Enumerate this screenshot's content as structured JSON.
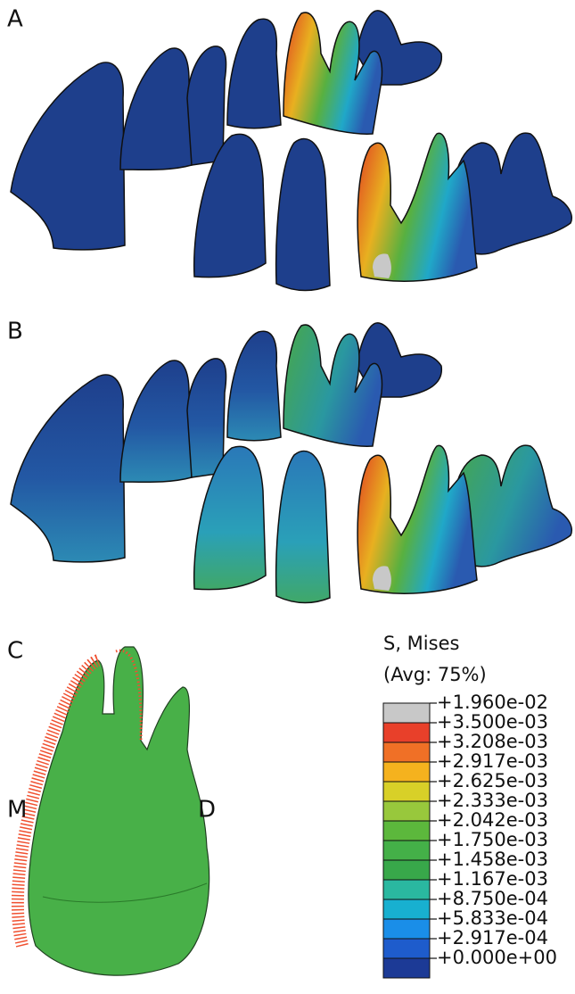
{
  "panels": [
    {
      "label": "A"
    },
    {
      "label": "B"
    },
    {
      "label": "C"
    }
  ],
  "annotations": [
    "M",
    "D"
  ],
  "legend": {
    "title": "S, Mises",
    "subtitle": "(Avg: 75%)",
    "labels": [
      "+1.960e-02",
      "+3.500e-03",
      "+3.208e-03",
      "+2.917e-03",
      "+2.625e-03",
      "+2.333e-03",
      "+2.042e-03",
      "+1.750e-03",
      "+1.458e-03",
      "+1.167e-03",
      "+8.750e-04",
      "+5.833e-04",
      "+2.917e-04",
      "+0.000e+00"
    ],
    "colors": [
      "#c8c8c8",
      "#e8402a",
      "#f07026",
      "#f5b21e",
      "#d8d028",
      "#98c83c",
      "#5cb83c",
      "#44b048",
      "#38a84a",
      "#2ab8a0",
      "#18b0d0",
      "#1a8ee8",
      "#1e5ccc",
      "#1c3a96"
    ]
  }
}
